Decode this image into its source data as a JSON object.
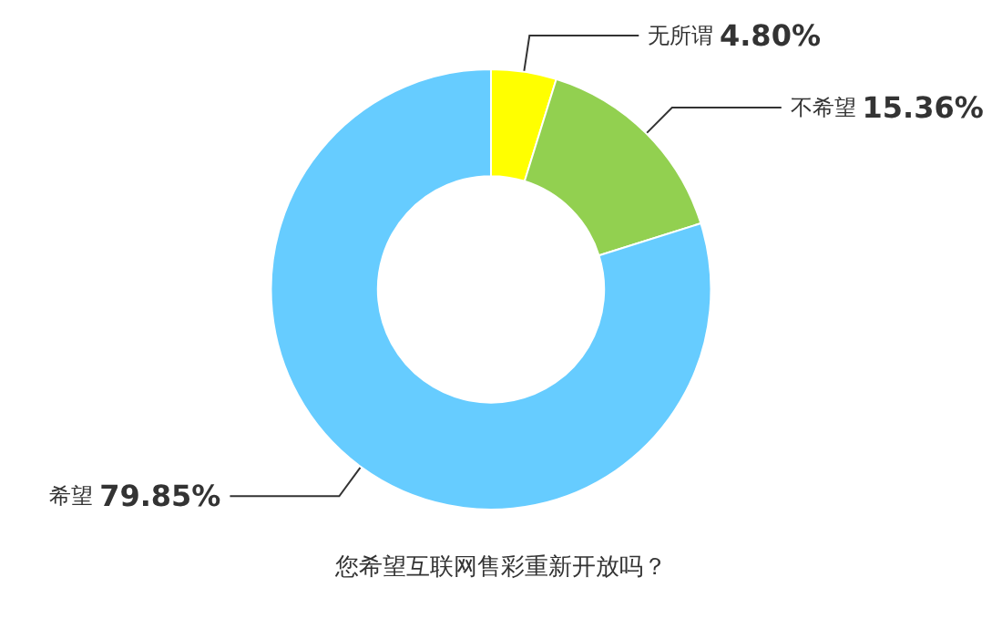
{
  "chart_data": {
    "type": "donut",
    "title": "您希望互联网售彩重新开放吗？",
    "categories": [
      "无所谓",
      "不希望",
      "希望"
    ],
    "values": [
      4.8,
      15.36,
      79.85
    ],
    "value_labels": [
      "4.80%",
      "15.36%",
      "79.85%"
    ],
    "colors": [
      "#ffff00",
      "#92d050",
      "#66ccff"
    ],
    "legend": false
  }
}
